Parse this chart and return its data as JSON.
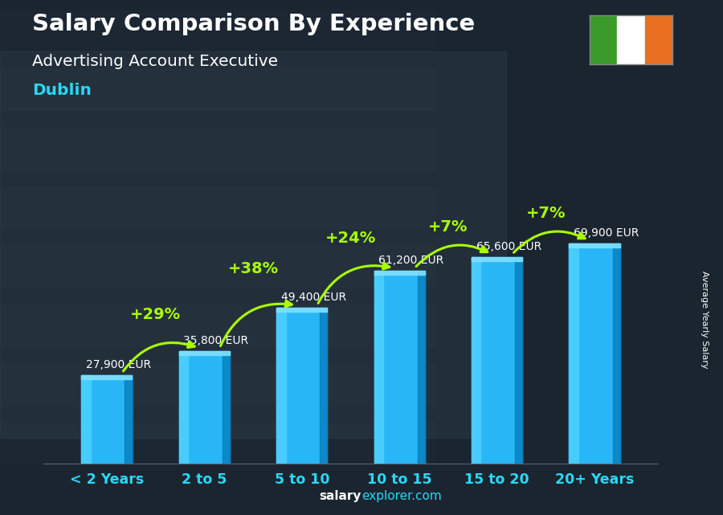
{
  "title": "Salary Comparison By Experience",
  "subtitle": "Advertising Account Executive",
  "city": "Dublin",
  "ylabel": "Average Yearly Salary",
  "xlabel_categories": [
    "< 2 Years",
    "2 to 5",
    "5 to 10",
    "10 to 15",
    "15 to 20",
    "20+ Years"
  ],
  "values": [
    27900,
    35800,
    49400,
    61200,
    65600,
    69900
  ],
  "value_labels": [
    "27,900 EUR",
    "35,800 EUR",
    "49,400 EUR",
    "61,200 EUR",
    "65,600 EUR",
    "69,900 EUR"
  ],
  "pct_changes": [
    null,
    "+29%",
    "+38%",
    "+24%",
    "+7%",
    "+7%"
  ],
  "bar_color_main": "#29b6f6",
  "bar_color_light": "#4dd0ff",
  "bar_color_dark": "#0077b6",
  "bar_color_top": "#80e0ff",
  "title_color": "#ffffff",
  "subtitle_color": "#ffffff",
  "city_color": "#29d8f5",
  "value_label_color": "#ffffff",
  "pct_color": "#aaff00",
  "arrow_color": "#aaff00",
  "xtick_color": "#29d8f5",
  "footer_bold": "salary",
  "footer_normal": "explorer.com",
  "bg_dark": "#1c2a35",
  "ylim_max": 85000,
  "flag_green": "#3a9a2a",
  "flag_white": "#FFFFFF",
  "flag_orange": "#e87020"
}
